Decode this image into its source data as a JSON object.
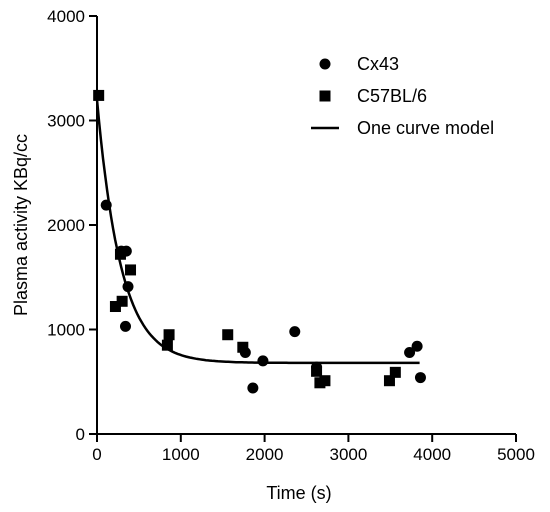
{
  "chart_data": {
    "type": "scatter",
    "xlabel": "Time (s)",
    "ylabel": "Plasma activity KBq/cc",
    "xlim": [
      0,
      5000
    ],
    "ylim": [
      0,
      4000
    ],
    "xticks": [
      0,
      1000,
      2000,
      3000,
      4000,
      5000
    ],
    "yticks": [
      0,
      1000,
      2000,
      3000,
      4000
    ],
    "legend_position": "top-right",
    "series": [
      {
        "name": "Cx43",
        "marker": "circle",
        "color": "#000000",
        "points": [
          [
            110,
            2190
          ],
          [
            290,
            1750
          ],
          [
            350,
            1750
          ],
          [
            370,
            1410
          ],
          [
            340,
            1030
          ],
          [
            1770,
            780
          ],
          [
            1860,
            440
          ],
          [
            1980,
            700
          ],
          [
            2360,
            980
          ],
          [
            2620,
            640
          ],
          [
            3730,
            780
          ],
          [
            3820,
            840
          ],
          [
            3860,
            540
          ]
        ]
      },
      {
        "name": "C57BL/6",
        "marker": "square",
        "color": "#000000",
        "points": [
          [
            20,
            3240
          ],
          [
            220,
            1220
          ],
          [
            300,
            1270
          ],
          [
            280,
            1720
          ],
          [
            400,
            1570
          ],
          [
            840,
            850
          ],
          [
            860,
            950
          ],
          [
            1560,
            950
          ],
          [
            1740,
            830
          ],
          [
            2620,
            600
          ],
          [
            2660,
            490
          ],
          [
            2720,
            510
          ],
          [
            3490,
            510
          ],
          [
            3560,
            590
          ]
        ]
      },
      {
        "name": "One curve model",
        "type": "line",
        "color": "#000000",
        "model": {
          "plateau": 680,
          "y0": 3200,
          "k": 0.0035,
          "x_start": 0,
          "x_end": 3850
        }
      }
    ]
  }
}
